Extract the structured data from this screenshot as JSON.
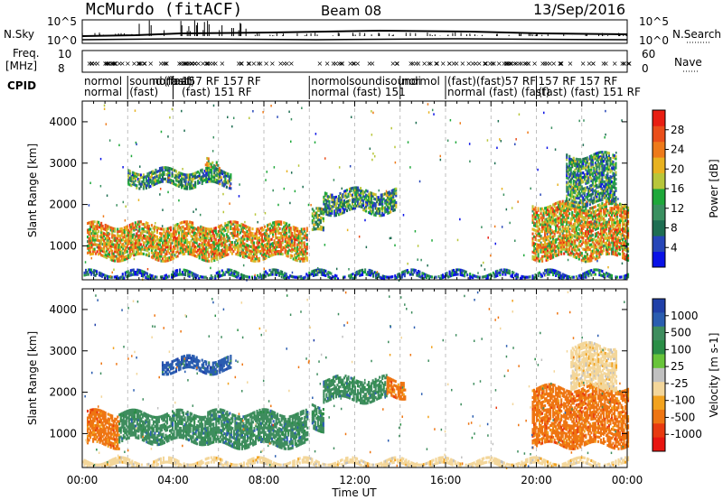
{
  "header": {
    "station": "McMurdo (fitACF)",
    "beam": "Beam 08",
    "date": "13/Sep/2016"
  },
  "status": {
    "left_labels": [
      "N.Sky",
      "Freq.",
      "[MHz]",
      "CPID"
    ],
    "right_labels": [
      "N.Search",
      "Nave"
    ],
    "sky_ticks": [
      "10^5",
      "10^0"
    ],
    "search_ticks": [
      "10^5",
      "10^0"
    ],
    "freq_ticks": [
      "10",
      "8"
    ],
    "nave_ticks": [
      "60",
      "0"
    ],
    "cpid_texts": [
      {
        "t": 0.0,
        "row": 1,
        "text": "normol"
      },
      {
        "t": 0.0,
        "row": 2,
        "text": "normal"
      },
      {
        "t": 2.0,
        "row": 1,
        "text": "sound (fast)"
      },
      {
        "t": 2.0,
        "row": 2,
        "text": "(fast)"
      },
      {
        "t": 3.0,
        "row": 1,
        "text": "normal"
      },
      {
        "t": 3.5,
        "row": 1,
        "text": "(fast)"
      },
      {
        "t": 4.3,
        "row": 1,
        "text": "157  RF 157  RF"
      },
      {
        "t": 4.3,
        "row": 2,
        "text": "(fast)  151  RF"
      },
      {
        "t": 10.0,
        "row": 1,
        "text": "normolsoundisoundi"
      },
      {
        "t": 10.0,
        "row": 2,
        "text": "normal  (fast)  151"
      },
      {
        "t": 14.0,
        "row": 1,
        "text": "normol"
      },
      {
        "t": 16.0,
        "row": 1,
        "text": "(fast)(fast)57 RF"
      },
      {
        "t": 16.0,
        "row": 2,
        "text": "normal (fast) (fast)"
      },
      {
        "t": 20.0,
        "row": 1,
        "text": "157 RF 157  RF"
      },
      {
        "t": 20.0,
        "row": 2,
        "text": "(fast) (fast)  151  RF"
      }
    ]
  },
  "chart_data": [
    {
      "type": "heatmap",
      "name": "power",
      "xlabel": "",
      "ylabel": "Slant Range [km]",
      "xlim": [
        0,
        24
      ],
      "ylim": [
        180,
        4500
      ],
      "yticks": [
        1000,
        2000,
        3000,
        4000
      ],
      "colorbar": {
        "label": "Power [dB]",
        "ticks": [
          "4",
          "8",
          "12",
          "16",
          "20",
          "24",
          "28"
        ],
        "colors": [
          "#0a12e6",
          "#2646b8",
          "#1e6e52",
          "#3a9060",
          "#1ea83a",
          "#b8c63a",
          "#e8b220",
          "#ee7a1a",
          "#ea4e1a",
          "#e81e12"
        ]
      },
      "regions": [
        {
          "t0": 0.2,
          "t1": 9.9,
          "r0": 700,
          "r1": 1500,
          "level": 0.65
        },
        {
          "t0": 10.1,
          "t1": 10.6,
          "r0": 1300,
          "r1": 1800,
          "level": 0.45
        },
        {
          "t0": 10.6,
          "t1": 13.8,
          "r0": 1800,
          "r1": 2300,
          "level": 0.35
        },
        {
          "t0": 2.0,
          "t1": 6.5,
          "r0": 2450,
          "r1": 2800,
          "level": 0.35
        },
        {
          "t0": 5.4,
          "t1": 6.0,
          "r0": 2850,
          "r1": 3050,
          "level": 0.55
        },
        {
          "t0": 19.8,
          "t1": 24.0,
          "r0": 700,
          "r1": 2000,
          "level": 0.65
        },
        {
          "t0": 21.3,
          "t1": 23.5,
          "r0": 2000,
          "r1": 3200,
          "level": 0.35
        },
        {
          "t0": 0.0,
          "t1": 24.0,
          "r0": 200,
          "r1": 320,
          "level": 0.2
        }
      ]
    },
    {
      "type": "heatmap",
      "name": "velocity",
      "xlabel": "Time UT",
      "ylabel": "Slant Range [km]",
      "xlim": [
        0,
        24
      ],
      "ylim": [
        180,
        4500
      ],
      "yticks": [
        1000,
        2000,
        3000,
        4000
      ],
      "xticks": [
        "00:00",
        "04:00",
        "08:00",
        "12:00",
        "16:00",
        "20:00",
        "00:00"
      ],
      "colorbar": {
        "label": "Velocity [m s-1]",
        "ticks": [
          "1000",
          "500",
          "100",
          "25",
          "-25",
          "-100",
          "-500",
          "-1000"
        ],
        "colors": [
          "#2040a8",
          "#2a5db0",
          "#3e8d5e",
          "#2a8e46",
          "#68c43a",
          "#c0c0c0",
          "#f3d69a",
          "#f2a21e",
          "#ee7512",
          "#e83a10",
          "#e81510"
        ]
      },
      "regions": [
        {
          "t0": 0.2,
          "t1": 1.6,
          "r0": 700,
          "r1": 1500,
          "value": -200
        },
        {
          "t0": 1.6,
          "t1": 5.5,
          "r0": 800,
          "r1": 1500,
          "value": 300
        },
        {
          "t0": 5.5,
          "t1": 9.9,
          "r0": 700,
          "r1": 1500,
          "value": 150
        },
        {
          "t0": 10.1,
          "t1": 10.6,
          "r0": 1100,
          "r1": 1700,
          "value": 150
        },
        {
          "t0": 10.6,
          "t1": 13.4,
          "r0": 1800,
          "r1": 2300,
          "value": 150
        },
        {
          "t0": 13.4,
          "t1": 14.2,
          "r0": 1900,
          "r1": 2300,
          "value": -120
        },
        {
          "t0": 3.5,
          "t1": 6.5,
          "r0": 2500,
          "r1": 2800,
          "value": 600
        },
        {
          "t0": 19.8,
          "t1": 24.0,
          "r0": 700,
          "r1": 2100,
          "value": -200
        },
        {
          "t0": 21.5,
          "t1": 23.5,
          "r0": 2100,
          "r1": 3100,
          "value": -30
        },
        {
          "t0": 0.0,
          "t1": 24.0,
          "r0": 200,
          "r1": 320,
          "value": -60
        }
      ]
    }
  ]
}
